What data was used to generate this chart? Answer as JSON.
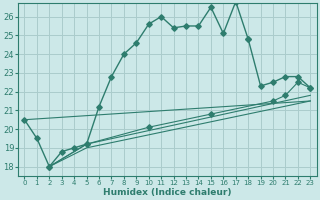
{
  "xlabel": "Humidex (Indice chaleur)",
  "bg_color": "#cce8e8",
  "grid_color": "#aacccc",
  "line_color": "#2e7d6e",
  "xlim": [
    -0.5,
    23.5
  ],
  "ylim": [
    17.5,
    26.7
  ],
  "yticks": [
    18,
    19,
    20,
    21,
    22,
    23,
    24,
    25,
    26
  ],
  "xticks": [
    0,
    1,
    2,
    3,
    4,
    5,
    6,
    7,
    8,
    9,
    10,
    11,
    12,
    13,
    14,
    15,
    16,
    17,
    18,
    19,
    20,
    21,
    22,
    23
  ],
  "line1_x": [
    0,
    1,
    2,
    3,
    4,
    5,
    6,
    7,
    8,
    9,
    10,
    11,
    12,
    13,
    14,
    15,
    16,
    17,
    18
  ],
  "line1_y": [
    20.5,
    19.5,
    18.0,
    18.8,
    19.0,
    19.2,
    21.2,
    22.8,
    24.0,
    24.6,
    25.6,
    26.0,
    25.4,
    25.5,
    25.5,
    26.5,
    25.1,
    26.8,
    24.8
  ],
  "line2_x": [
    18,
    19,
    20,
    21,
    22,
    23
  ],
  "line2_y": [
    24.8,
    22.3,
    22.5,
    22.8,
    22.8,
    22.2
  ],
  "line3_x": [
    2,
    5,
    23
  ],
  "line3_y": [
    18.0,
    19.2,
    21.8
  ],
  "line4_x": [
    2,
    5,
    10,
    15,
    20,
    21,
    22,
    23
  ],
  "line4_y": [
    18.0,
    19.2,
    20.1,
    20.8,
    21.5,
    21.8,
    22.5,
    22.2
  ],
  "line5_x": [
    2,
    5,
    23
  ],
  "line5_y": [
    18.0,
    19.0,
    21.5
  ],
  "line6_x": [
    0,
    23
  ],
  "line6_y": [
    20.5,
    21.5
  ]
}
